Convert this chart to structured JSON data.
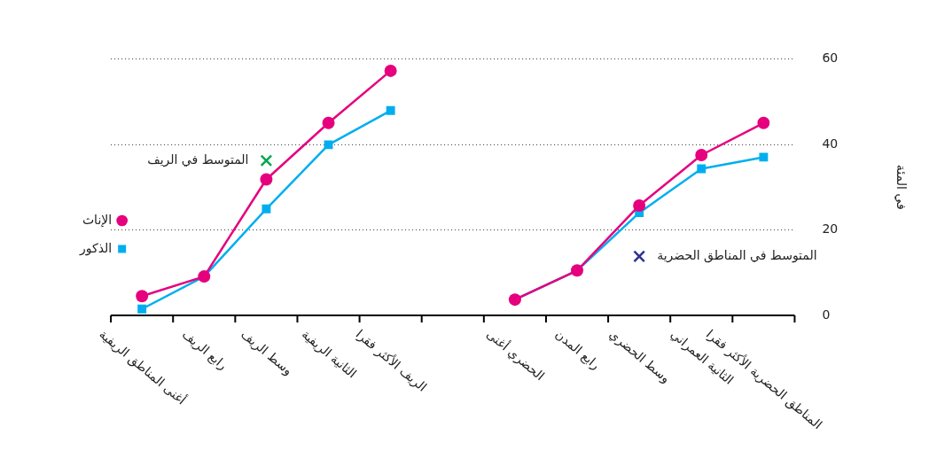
{
  "chart_data": {
    "type": "line",
    "ylabel": "في المئة",
    "categories": [
      "أغنى المناطق الريفية",
      "رابع الريف",
      "وسط الريف",
      "الثانية الريفية",
      "الريف الأكثر فقرا",
      null,
      "الحضري أغنى",
      "رابع المدن",
      "وسط الحضري",
      "الثانية العمراني",
      "المناطق الحضرية الأكثر فقرا"
    ],
    "series": [
      {
        "name": "الذكور",
        "color": "#00aeef",
        "marker": "square",
        "values": [
          1.5,
          9.1,
          24.9,
          39.9,
          47.9,
          null,
          3.7,
          10.5,
          24.0,
          34.3,
          37.0
        ]
      },
      {
        "name": "الإناث",
        "color": "#e6007e",
        "marker": "circle",
        "values": [
          4.5,
          9.1,
          31.8,
          45.0,
          57.2,
          null,
          3.7,
          10.5,
          25.7,
          37.5,
          45.0
        ]
      },
      {
        "name": "المتوسط في الريف",
        "type": "scatter",
        "color": "#00a651",
        "marker": "cross",
        "values": [
          null,
          null,
          36.2,
          null,
          null,
          null,
          null,
          null,
          null,
          null,
          null
        ]
      },
      {
        "name": "المتوسط في المناطق الحضرية",
        "type": "scatter",
        "color": "#2e3192",
        "marker": "cross",
        "values": [
          null,
          null,
          null,
          null,
          null,
          null,
          null,
          null,
          13.8,
          null,
          null
        ]
      }
    ],
    "ylim": [
      0,
      60
    ],
    "yticks": [
      0,
      20,
      40,
      60
    ],
    "grid": "y",
    "legend": "left",
    "line_style": "solid"
  }
}
